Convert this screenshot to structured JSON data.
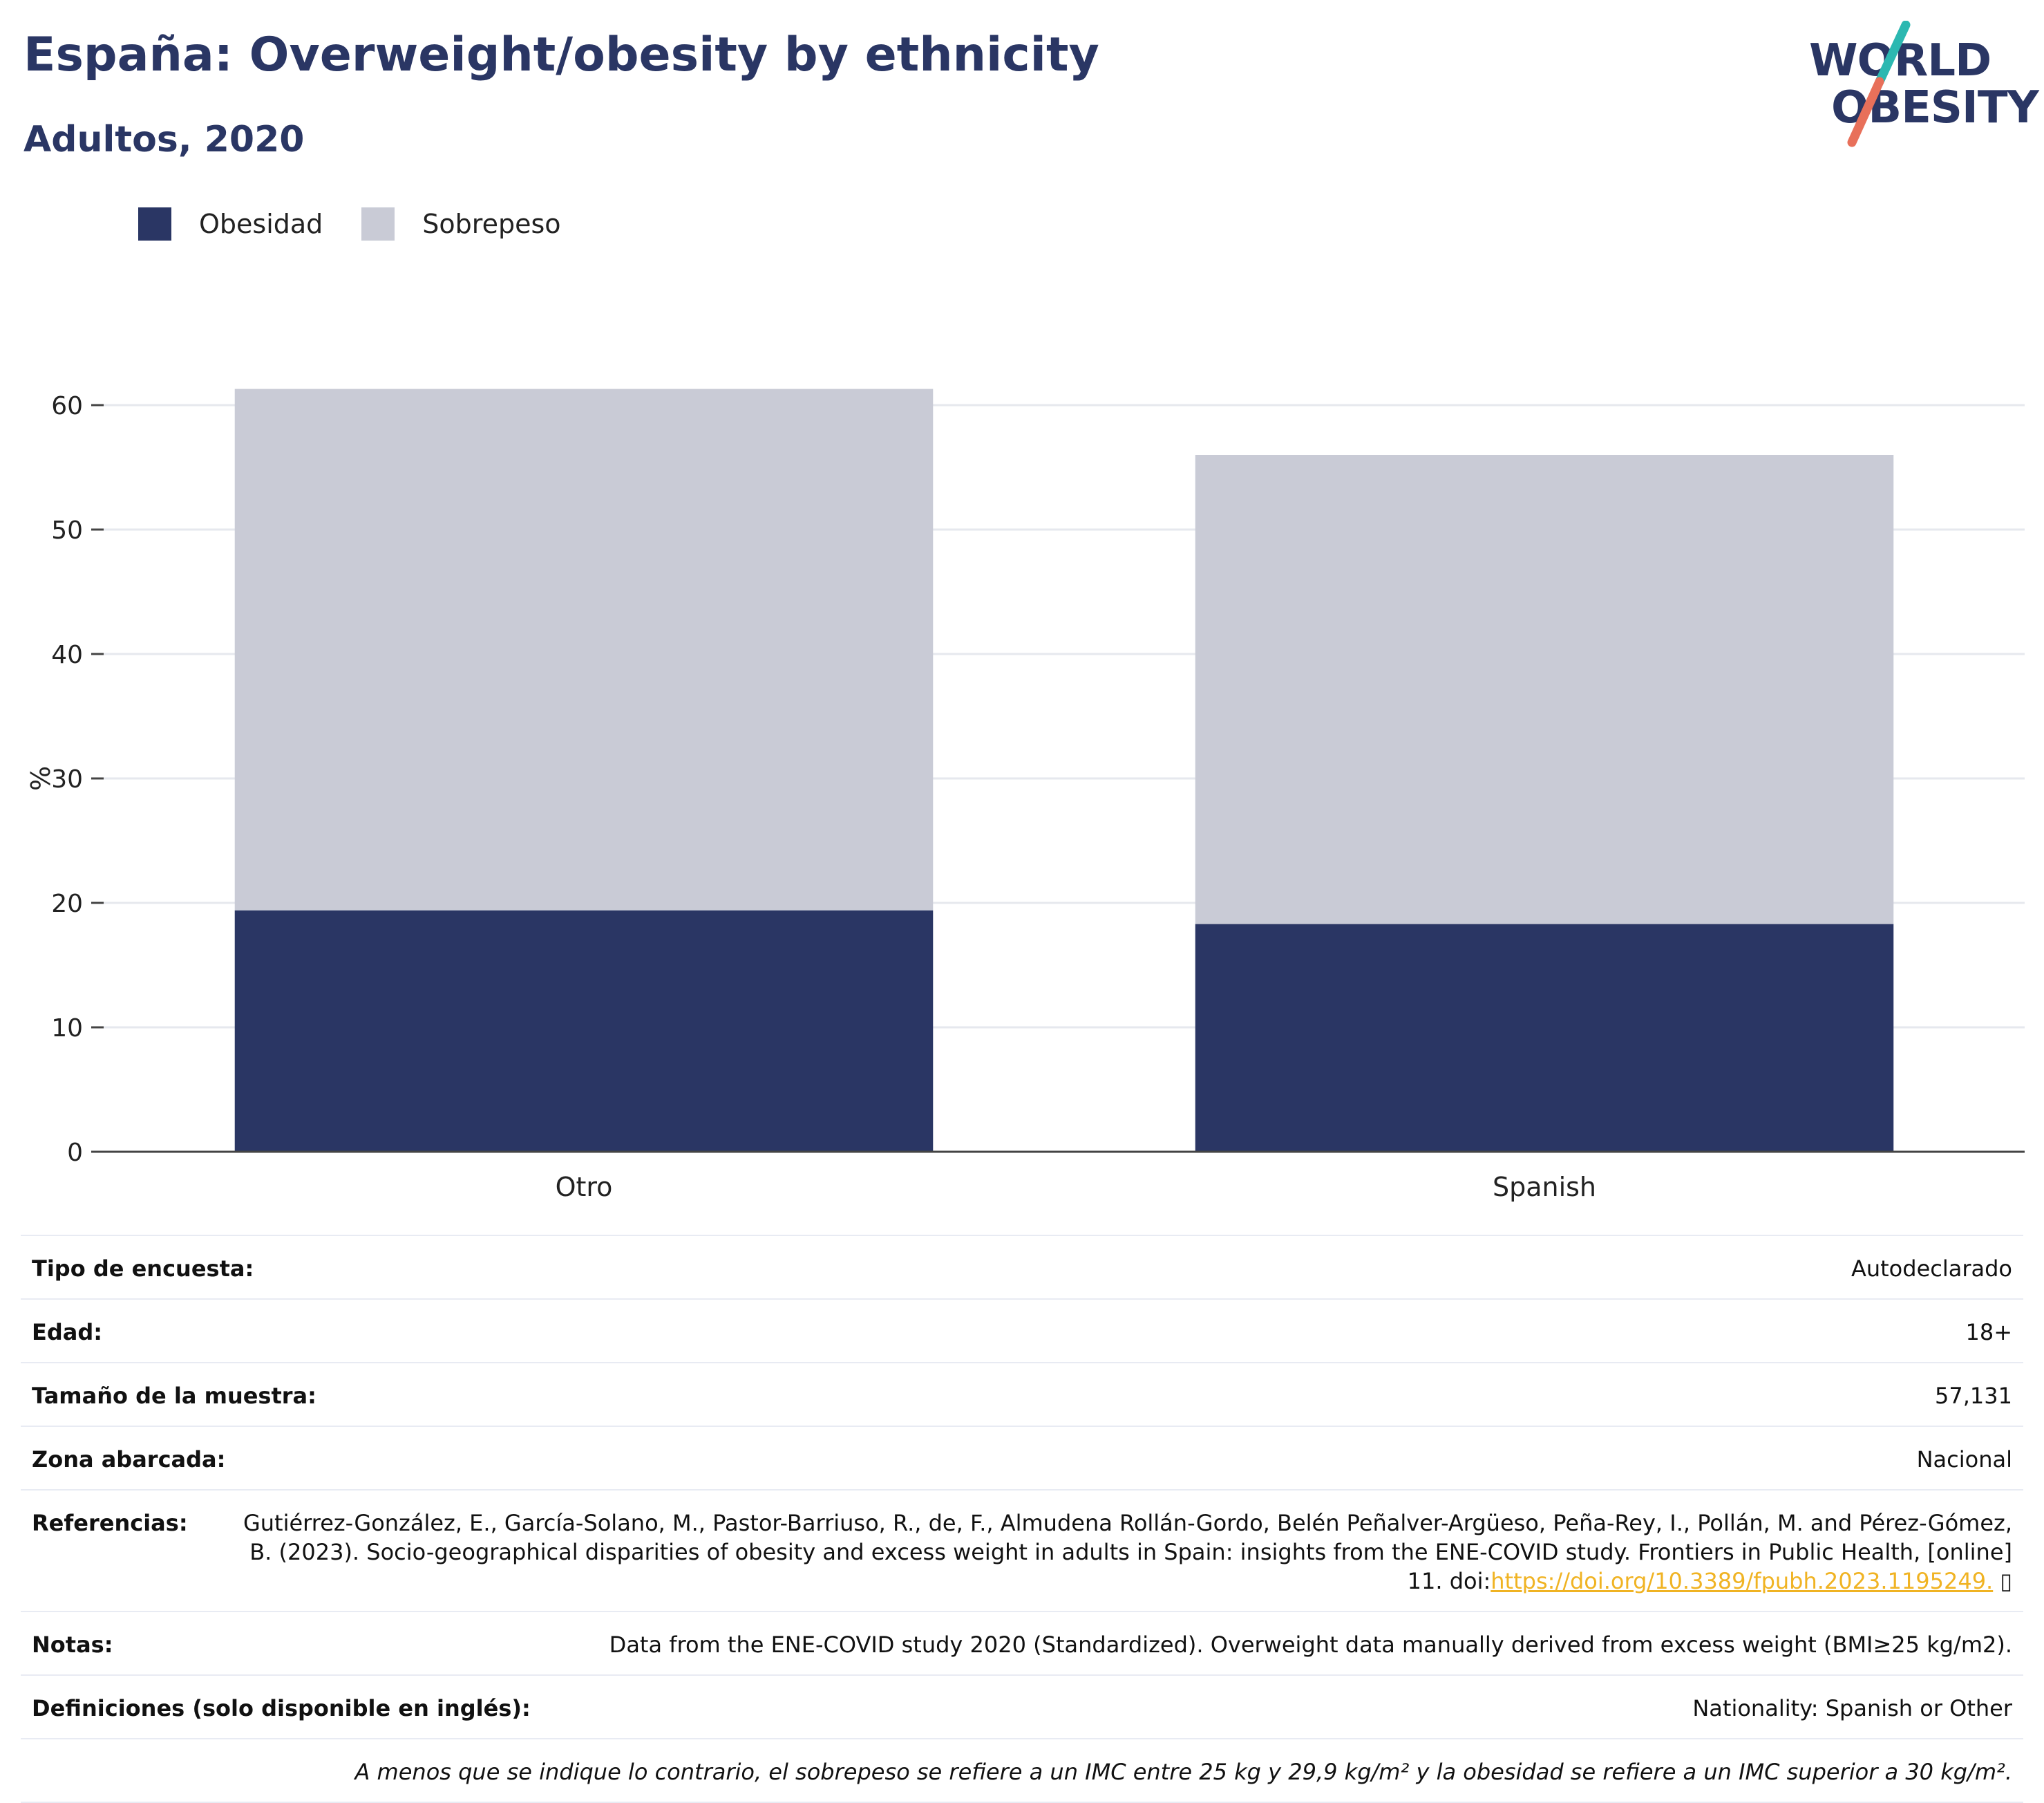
{
  "header": {
    "title": "España: Overweight/obesity by ethnicity",
    "subtitle": "Adultos, 2020"
  },
  "logo": {
    "line1": "WORLD",
    "line2": "OBESITY",
    "text_color": "#2a3664",
    "slash_colors": [
      "#2cb8b1",
      "#e8705a"
    ]
  },
  "legend": [
    {
      "label": "Obesidad",
      "color": "#2a3664"
    },
    {
      "label": "Sobrepeso",
      "color": "#c9cbd6"
    }
  ],
  "chart_data": {
    "type": "bar",
    "stacked": true,
    "categories": [
      "Otro",
      "Spanish"
    ],
    "series": [
      {
        "name": "Obesidad",
        "values": [
          19.4,
          18.3
        ],
        "color": "#2a3664"
      },
      {
        "name": "Sobrepeso",
        "values": [
          41.9,
          37.7
        ],
        "color": "#c9cbd6"
      }
    ],
    "title": "España: Overweight/obesity by ethnicity",
    "subtitle": "Adultos, 2020",
    "xlabel": "",
    "ylabel": "%",
    "ylim": [
      0,
      65
    ],
    "yticks": [
      0,
      10,
      20,
      30,
      40,
      50,
      60
    ],
    "grid": true,
    "legend_position": "top-left"
  },
  "info": {
    "rows": [
      {
        "label": "Tipo de encuesta:",
        "value": "Autodeclarado"
      },
      {
        "label": "Edad:",
        "value": "18+"
      },
      {
        "label": "Tamaño de la muestra:",
        "value": "57,131"
      },
      {
        "label": "Zona abarcada:",
        "value": "Nacional"
      }
    ],
    "references": {
      "label": "Referencias:",
      "text": "Gutiérrez-González, E., García-Solano, M., Pastor-Barriuso, R., de, F., Almudena Rollán-Gordo, Belén Peñalver-Argüeso, Peña-Rey, I., Pollán, M. and Pérez-Gómez, B. (2023). Socio-geographical disparities of obesity and excess weight in adults in Spain: insights from the ENE-COVID study. Frontiers in Public Health, [online] 11. doi:",
      "link": "https://doi.org/10.3389/fpubh.2023.1195249.",
      "trailing": " ▯"
    },
    "notes": {
      "label": "Notas:",
      "value": "Data from the ENE-COVID study 2020 (Standardized). Overweight data manually derived from excess weight (BMI≥25 kg/m2)."
    },
    "definitions": {
      "label": "Definiciones (solo disponible en inglés):",
      "value": "Nationality: Spanish or Other"
    },
    "footnote": "A menos que se indique lo contrario, el sobrepeso se refiere a un IMC entre 25 kg y 29,9 kg/m² y la obesidad se refiere a un IMC superior a 30 kg/m²."
  }
}
